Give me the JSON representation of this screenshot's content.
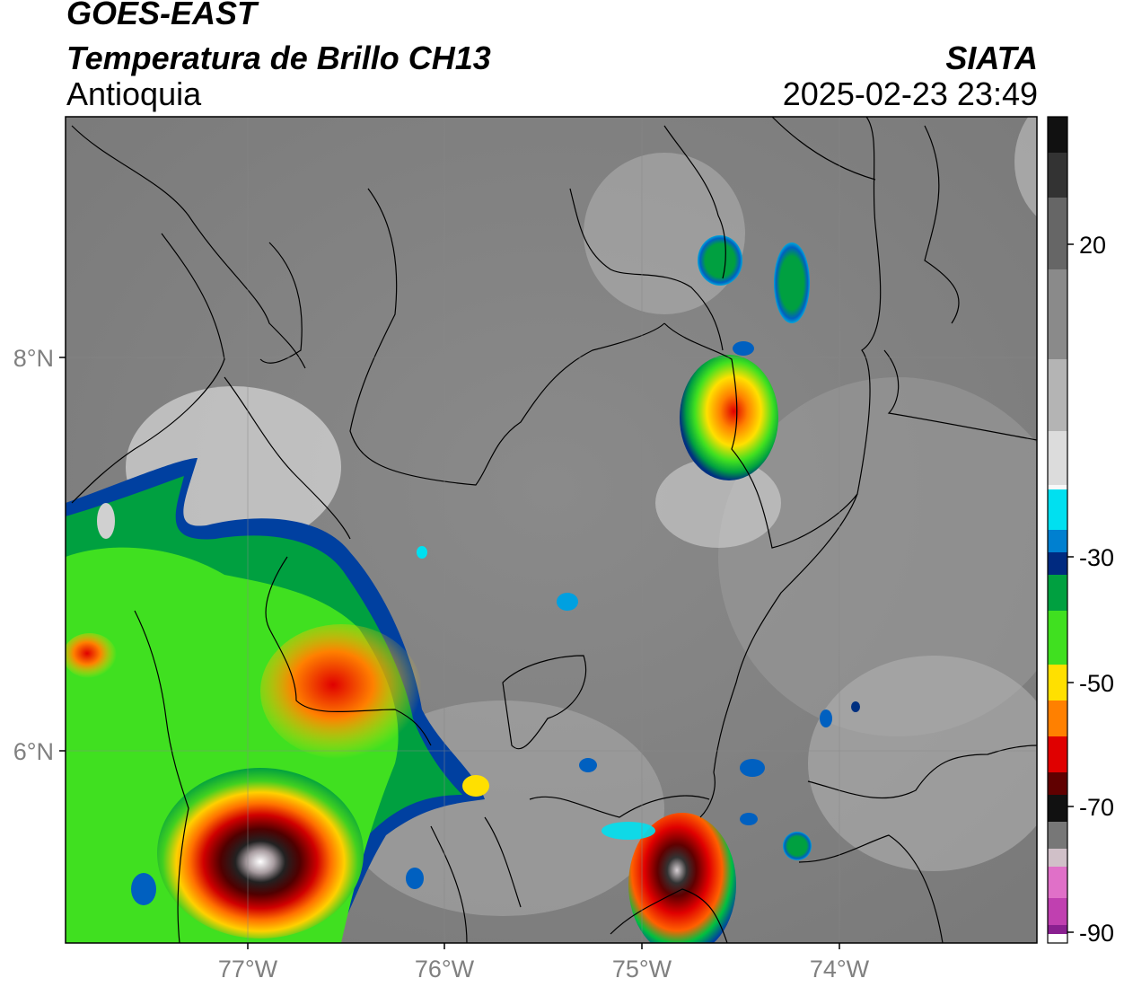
{
  "header": {
    "satellite": "GOES-EAST",
    "product": "Temperatura de Brillo CH13",
    "region": "Antioquia",
    "source": "SIATA",
    "datetime": "2025-02-23 23:49"
  },
  "axes": {
    "lat_labels": [
      "8°N",
      "6°N"
    ],
    "lon_labels": [
      "77°W",
      "76°W",
      "75°W",
      "74°W"
    ]
  },
  "colorbar": {
    "labels": [
      "20",
      "-30",
      "-50",
      "-70",
      "-90"
    ],
    "colors": [
      "#111111",
      "#444444",
      "#777777",
      "#9a9a9a",
      "#c8c8c8",
      "#f0f0f0",
      "#00e0f0",
      "#0060c0",
      "#003080",
      "#00a040",
      "#40e020",
      "#ffe000",
      "#ff8000",
      "#e00000",
      "#600000",
      "#1a1a1a",
      "#c0a8b0",
      "#e060c0",
      "#902090"
    ]
  }
}
